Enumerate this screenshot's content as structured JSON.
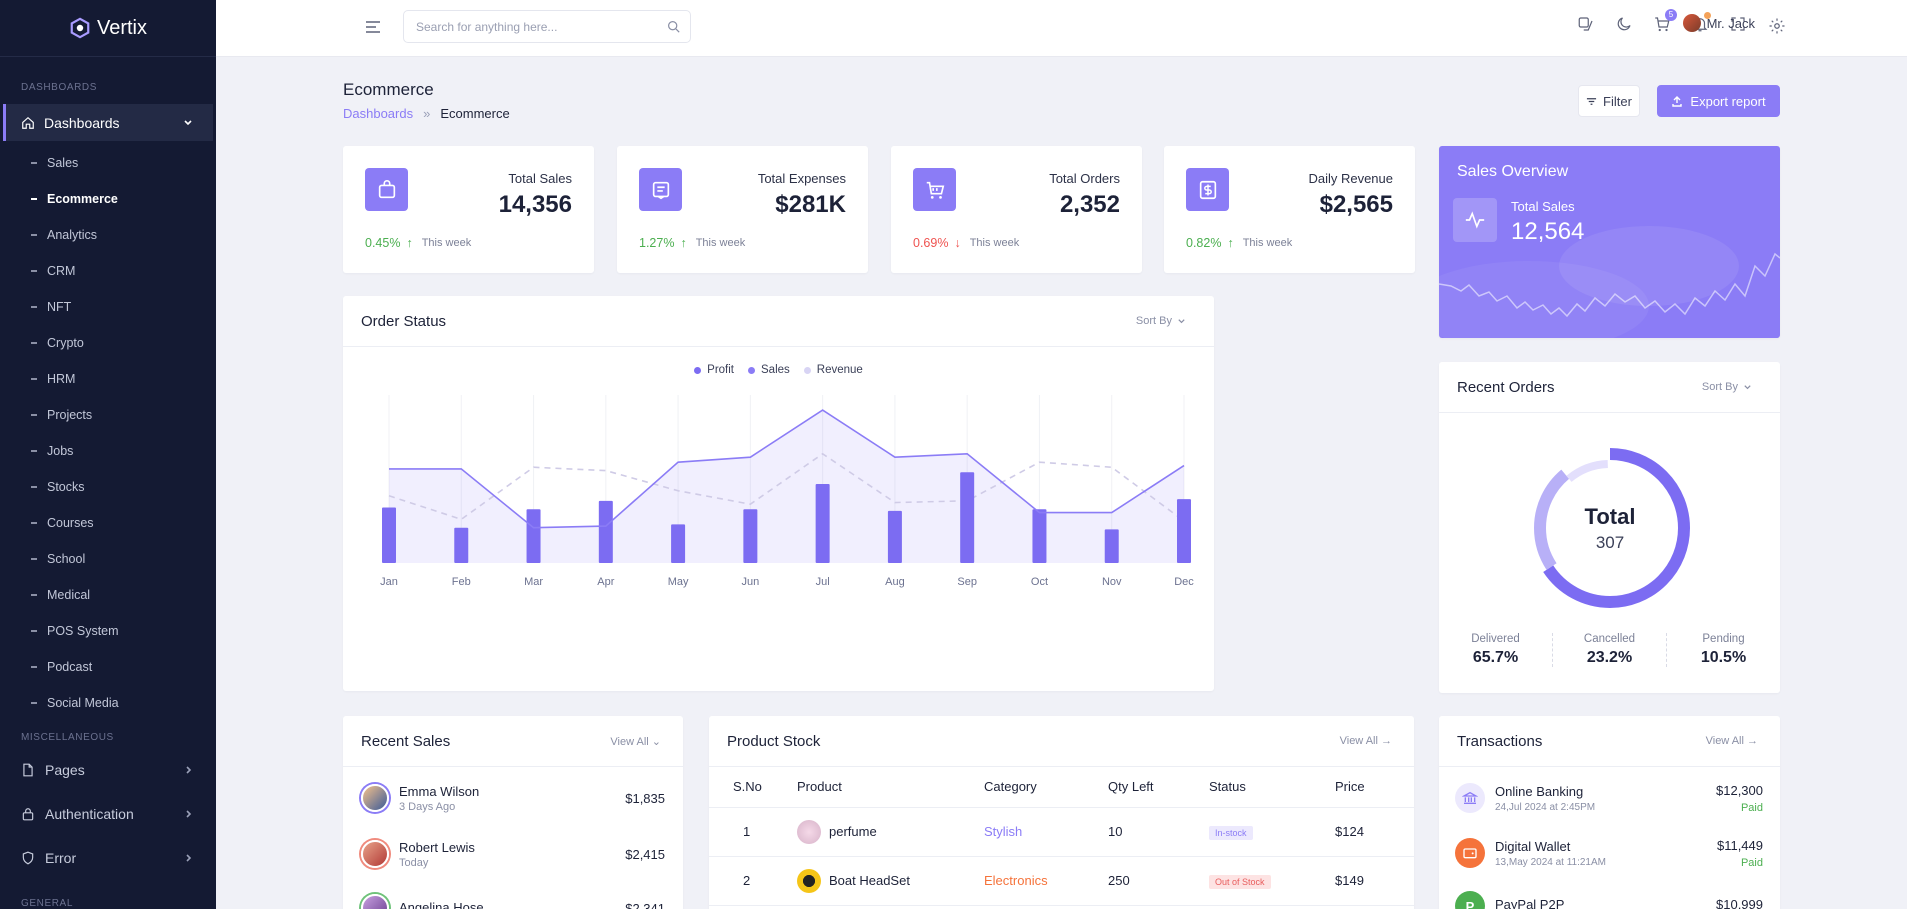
{
  "brand": {
    "name": "Vertix"
  },
  "sidebar": {
    "category_dashboards": "DASHBOARDS",
    "main_item": "Dashboards",
    "sub_items": [
      "Sales",
      "Ecommerce",
      "Analytics",
      "CRM",
      "NFT",
      "Crypto",
      "HRM",
      "Projects",
      "Jobs",
      "Stocks",
      "Courses",
      "School",
      "Medical",
      "POS System",
      "Podcast",
      "Social Media"
    ],
    "active_sub": "Ecommerce",
    "category_misc": "MISCELLANEOUS",
    "groups": [
      "Pages",
      "Authentication",
      "Error"
    ],
    "category_general": "GENERAL"
  },
  "header": {
    "search_placeholder": "Search for anything here...",
    "cart_badge": "5",
    "user_name": "Mr. Jack"
  },
  "page": {
    "title": "Ecommerce",
    "breadcrumb": [
      "Dashboards",
      "Ecommerce"
    ],
    "filter_label": "Filter",
    "export_label": "Export report"
  },
  "stats": [
    {
      "label": "Total Sales",
      "value": "14,356",
      "change": "0.45%",
      "direction": "up",
      "period": "This week",
      "icon": "shopping-bag-icon"
    },
    {
      "label": "Total Expenses",
      "value": "$281K",
      "change": "1.27%",
      "direction": "up",
      "period": "This week",
      "icon": "receipt-icon"
    },
    {
      "label": "Total Orders",
      "value": "2,352",
      "change": "0.69%",
      "direction": "down",
      "period": "This week",
      "icon": "cart-icon"
    },
    {
      "label": "Daily Revenue",
      "value": "$2,565",
      "change": "0.82%",
      "direction": "up",
      "period": "This week",
      "icon": "dollar-icon"
    }
  ],
  "sales_overview": {
    "title": "Sales Overview",
    "label": "Total Sales",
    "value": "12,564"
  },
  "order_status": {
    "title": "Order Status",
    "sort_label": "Sort By"
  },
  "chart_data": {
    "type": "bar",
    "categories": [
      "Jan",
      "Feb",
      "Mar",
      "Apr",
      "May",
      "Jun",
      "Jul",
      "Aug",
      "Sep",
      "Oct",
      "Nov",
      "Dec"
    ],
    "series": [
      {
        "name": "Profit",
        "type": "bar",
        "color": "#7c6cf2",
        "values": [
          33,
          21,
          32,
          37,
          23,
          32,
          47,
          31,
          54,
          32,
          20,
          38
        ]
      },
      {
        "name": "Sales",
        "type": "area",
        "color": "#8b7cf6",
        "values": [
          56,
          56,
          21,
          22,
          60,
          63,
          91,
          63,
          65,
          30,
          30,
          58
        ]
      },
      {
        "name": "Revenue",
        "type": "line-dashed",
        "color": "#c9c5ea",
        "values": [
          40,
          26,
          57,
          55,
          43,
          35,
          65,
          36,
          37,
          60,
          57,
          25
        ]
      }
    ],
    "ylim": [
      0,
      100
    ],
    "grid": true,
    "legend": "top-center"
  },
  "recent_orders": {
    "title": "Recent Orders",
    "sort_label": "Sort By",
    "total_label": "Total",
    "total_value": "307",
    "segments": [
      {
        "label": "Delivered",
        "value": "65.7%",
        "fraction": 0.657,
        "color": "#7c6cf2"
      },
      {
        "label": "Cancelled",
        "value": "23.2%",
        "fraction": 0.232,
        "color": "#b8b0f7"
      },
      {
        "label": "Pending",
        "value": "10.5%",
        "fraction": 0.105,
        "color": "#e3dffc"
      }
    ]
  },
  "recent_sales": {
    "title": "Recent Sales",
    "view_all": "View All",
    "rows": [
      {
        "name": "Emma Wilson",
        "date": "3 Days Ago",
        "amount": "$1,835"
      },
      {
        "name": "Robert Lewis",
        "date": "Today",
        "amount": "$2,415"
      },
      {
        "name": "Angelina Hose",
        "date": "",
        "amount": "$2,341"
      }
    ]
  },
  "product_stock": {
    "title": "Product Stock",
    "view_all": "View All",
    "columns": [
      "S.No",
      "Product",
      "Category",
      "Qty Left",
      "Status",
      "Price"
    ],
    "rows": [
      {
        "sno": "1",
        "product": "perfume",
        "category": "Stylish",
        "qty": "10",
        "status": "In-stock",
        "price": "$124"
      },
      {
        "sno": "2",
        "product": "Boat HeadSet",
        "category": "Electronics",
        "qty": "250",
        "status": "Out of Stock",
        "price": "$149"
      }
    ]
  },
  "transactions": {
    "title": "Transactions",
    "view_all": "View All",
    "rows": [
      {
        "name": "Online Banking",
        "date": "24,Jul 2024 at 2:45PM",
        "amount": "$12,300",
        "status": "Paid"
      },
      {
        "name": "Digital Wallet",
        "date": "13,May 2024 at 11:21AM",
        "amount": "$11,449",
        "status": "Paid"
      },
      {
        "name": "PayPal P2P",
        "date": "",
        "amount": "$10,999",
        "status": ""
      }
    ]
  }
}
